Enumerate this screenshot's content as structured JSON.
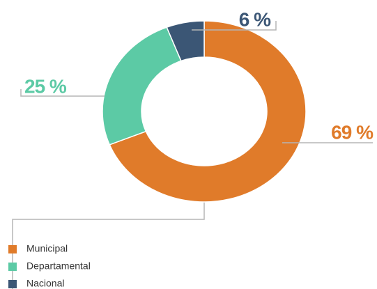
{
  "chart_data": {
    "type": "donut",
    "categories": [
      "Municipal",
      "Departamental",
      "Nacional"
    ],
    "values": [
      69,
      25,
      6
    ],
    "value_labels": [
      "69 %",
      "25 %",
      "6 %"
    ],
    "colors": [
      "#e07b2a",
      "#5ccaa5",
      "#3b5675"
    ],
    "legend": "bottom-left"
  }
}
